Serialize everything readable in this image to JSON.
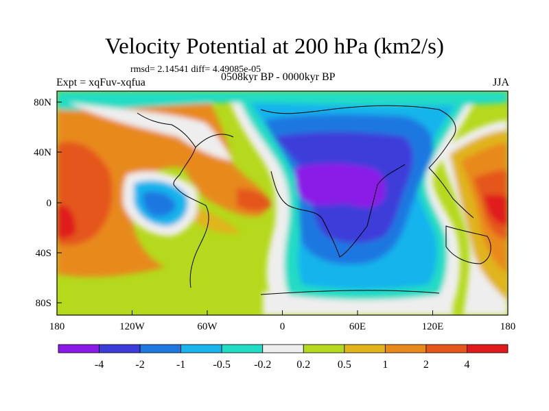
{
  "title": "Velocity Potential at 200 hPa (km2/s)",
  "stats": "rmsd= 2.14541 diff= 4.49085e-05",
  "experiment": "Expt = xqFuv-xqfua",
  "period": "0508kyr BP - 0000kyr BP",
  "season": "JJA",
  "map": {
    "lat_ticks": [
      "80N",
      "40N",
      "0",
      "40S",
      "80S"
    ],
    "lon_ticks": [
      "180",
      "120W",
      "60W",
      "0",
      "60E",
      "120E",
      "180"
    ]
  },
  "colorbar": {
    "colors": [
      "#8a1ae6",
      "#3c3cd9",
      "#1e78e0",
      "#19b4ec",
      "#22dcc4",
      "#eeeeee",
      "#b5d91c",
      "#e0b41a",
      "#e8891e",
      "#e4561a",
      "#e01a1a"
    ],
    "labels": [
      "-4",
      "-2",
      "-1",
      "-0.5",
      "-0.2",
      "0.2",
      "0.5",
      "1",
      "2",
      "4"
    ]
  }
}
